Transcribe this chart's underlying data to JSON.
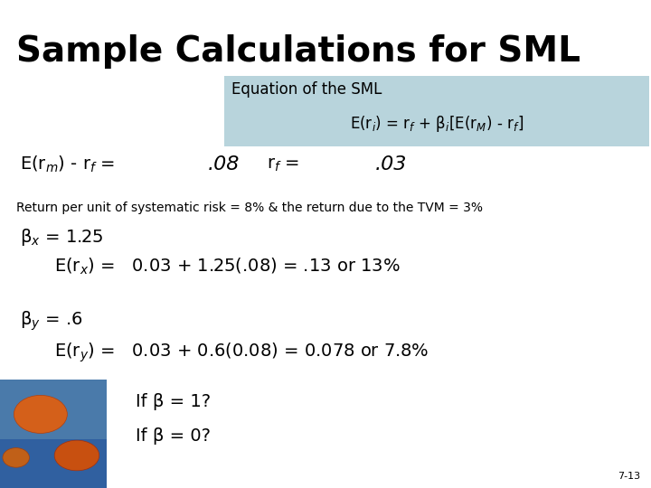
{
  "title": "Sample Calculations for SML",
  "title_fontsize": 28,
  "title_fontweight": "bold",
  "bg_color": "#ffffff",
  "box_color": "#b8d4dc",
  "equation_label": "Equation of the SML",
  "equation_formula": "E(r$_i$) = r$_f$ + β$_i$[E(r$_M$) - r$_f$]",
  "line1_left": "E(r$_m$) - r$_f$ =",
  "line1_mid": ".08",
  "line1_right_label": "r$_f$ =",
  "line1_right_val": ".03",
  "line2": "Return per unit of systematic risk = 8% & the return due to the TVM = 3%",
  "line3a": "β$_x$ = 1.25",
  "line3b": "E(r$_x$) =   0.03 + 1.25(.08) = .13 or 13%",
  "line4a": "β$_y$ = .6",
  "line4b": "E(r$_y$) =   0.03 + 0.6(0.08) = 0.078 or 7.8%",
  "line5": "If β = 1?",
  "line6": "If β = 0?",
  "page_num": "7-13",
  "text_color": "#000000",
  "small_fontsize": 10,
  "medium_fontsize": 12,
  "large_fontsize": 14
}
